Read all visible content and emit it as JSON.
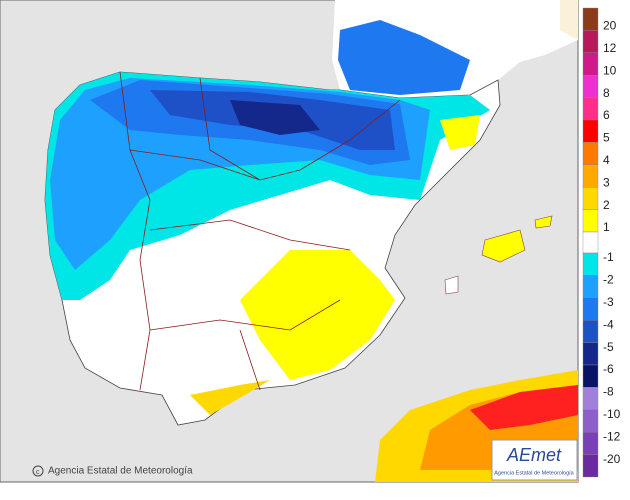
{
  "legend": {
    "upper": [
      {
        "label": "20",
        "color": "#8b3a1a"
      },
      {
        "label": "12",
        "color": "#b8195a"
      },
      {
        "label": "10",
        "color": "#d01a8c"
      },
      {
        "label": "8",
        "color": "#ee30d0"
      },
      {
        "label": "6",
        "color": "#ff2e8a"
      },
      {
        "label": "5",
        "color": "#ff0000"
      },
      {
        "label": "4",
        "color": "#ff7800"
      },
      {
        "label": "3",
        "color": "#ffa800"
      },
      {
        "label": "2",
        "color": "#ffd800"
      },
      {
        "label": "1",
        "color": "#ffff00"
      }
    ],
    "lower": [
      {
        "label": "-1",
        "color": "#00e6e6"
      },
      {
        "label": "-2",
        "color": "#1ea0ff"
      },
      {
        "label": "-3",
        "color": "#1e78f0"
      },
      {
        "label": "-4",
        "color": "#1e50c8"
      },
      {
        "label": "-5",
        "color": "#14288c"
      },
      {
        "label": "-6",
        "color": "#0a1464"
      },
      {
        "label": "-8",
        "color": "#a080d8"
      },
      {
        "label": "-10",
        "color": "#8c60c8"
      },
      {
        "label": "-12",
        "color": "#7a40b8"
      },
      {
        "label": "-20",
        "color": "#6a2aa0"
      }
    ]
  },
  "credit": "Agencia Estatal de Meteorología",
  "logo": {
    "name": "AEmet",
    "subtitle": "Agencia Estatal de Meteorología"
  }
}
